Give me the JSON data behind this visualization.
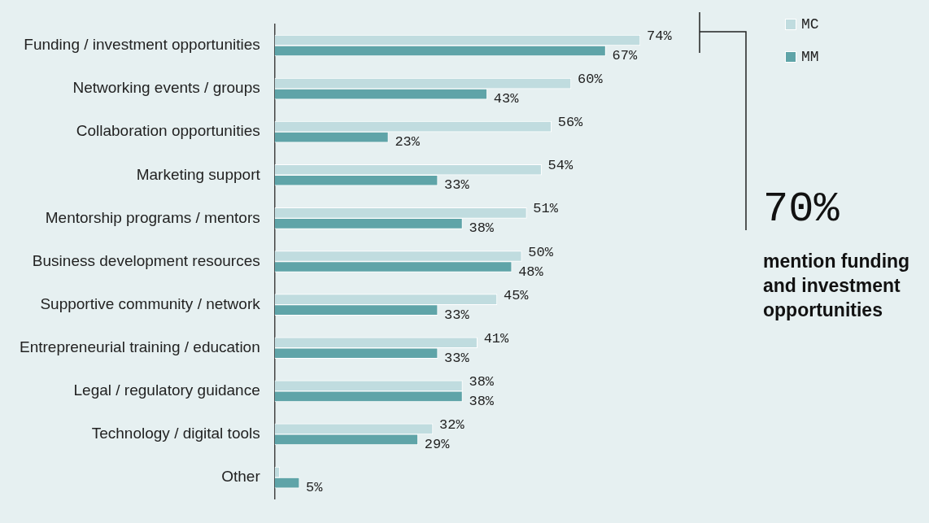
{
  "chart_data": {
    "type": "bar",
    "orientation": "horizontal",
    "categories": [
      "Funding / investment opportunities",
      "Networking events / groups",
      "Collaboration opportunities",
      "Marketing support",
      "Mentorship programs / mentors",
      "Business development resources",
      "Supportive community / network",
      "Entrepreneurial training / education",
      "Legal / regulatory guidance",
      "Technology / digital tools",
      "Other"
    ],
    "series": [
      {
        "name": "MC",
        "color": "#c0dcdf",
        "values": [
          74,
          60,
          56,
          54,
          51,
          50,
          45,
          41,
          38,
          32,
          1
        ],
        "value_labels": [
          "74%",
          "60%",
          "56%",
          "54%",
          "51%",
          "50%",
          "45%",
          "41%",
          "38%",
          "32%",
          null
        ]
      },
      {
        "name": "MM",
        "color": "#5fa4a8",
        "values": [
          67,
          43,
          23,
          33,
          38,
          48,
          33,
          33,
          38,
          29,
          5
        ],
        "value_labels": [
          "67%",
          "43%",
          "23%",
          "33%",
          "38%",
          "48%",
          "33%",
          "33%",
          "38%",
          "29%",
          "5%"
        ]
      }
    ],
    "legend": "top right",
    "annotations": [
      "70%",
      "mention funding and investment opportunities"
    ]
  }
}
